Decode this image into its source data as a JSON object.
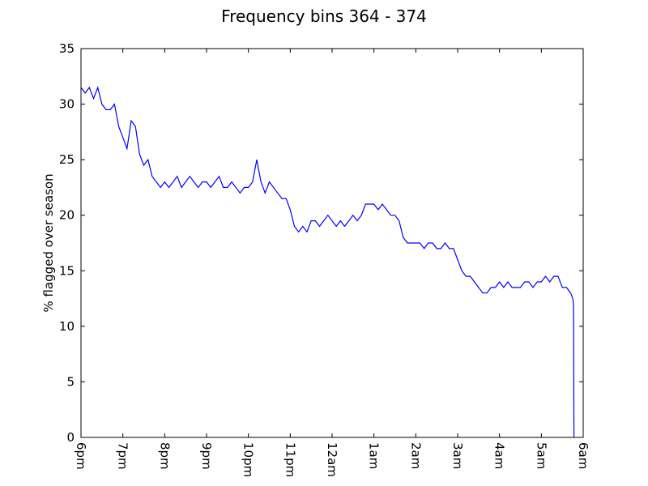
{
  "chart_data": {
    "type": "line",
    "title": "Frequency bins 364 - 374",
    "xlabel": "",
    "ylabel": "% flagged over season",
    "ylim": [
      0,
      35
    ],
    "xlim": [
      0,
      12
    ],
    "x_ticks": [
      {
        "value": 0,
        "label": "6pm"
      },
      {
        "value": 1,
        "label": "7pm"
      },
      {
        "value": 2,
        "label": "8pm"
      },
      {
        "value": 3,
        "label": "9pm"
      },
      {
        "value": 4,
        "label": "10pm"
      },
      {
        "value": 5,
        "label": "11pm"
      },
      {
        "value": 6,
        "label": "12am"
      },
      {
        "value": 7,
        "label": "1am"
      },
      {
        "value": 8,
        "label": "2am"
      },
      {
        "value": 9,
        "label": "3am"
      },
      {
        "value": 10,
        "label": "4am"
      },
      {
        "value": 11,
        "label": "5am"
      },
      {
        "value": 12,
        "label": "6am"
      }
    ],
    "y_ticks": [
      0,
      5,
      10,
      15,
      20,
      25,
      30,
      35
    ],
    "grid": false,
    "series": [
      {
        "color": "#0000ff",
        "x": [
          0.0,
          0.1,
          0.2,
          0.3,
          0.4,
          0.5,
          0.6,
          0.7,
          0.8,
          0.9,
          1.0,
          1.1,
          1.2,
          1.3,
          1.4,
          1.5,
          1.6,
          1.7,
          1.8,
          1.9,
          2.0,
          2.1,
          2.2,
          2.3,
          2.4,
          2.5,
          2.6,
          2.7,
          2.8,
          2.9,
          3.0,
          3.1,
          3.2,
          3.3,
          3.4,
          3.5,
          3.6,
          3.7,
          3.8,
          3.9,
          4.0,
          4.1,
          4.2,
          4.3,
          4.4,
          4.5,
          4.6,
          4.7,
          4.8,
          4.9,
          5.0,
          5.1,
          5.2,
          5.3,
          5.4,
          5.5,
          5.6,
          5.7,
          5.8,
          5.9,
          6.0,
          6.1,
          6.2,
          6.3,
          6.4,
          6.5,
          6.6,
          6.7,
          6.8,
          6.9,
          7.0,
          7.1,
          7.2,
          7.3,
          7.4,
          7.5,
          7.6,
          7.7,
          7.8,
          7.9,
          8.0,
          8.1,
          8.2,
          8.3,
          8.4,
          8.5,
          8.6,
          8.7,
          8.8,
          8.9,
          9.0,
          9.1,
          9.2,
          9.3,
          9.4,
          9.5,
          9.6,
          9.7,
          9.8,
          9.9,
          10.0,
          10.1,
          10.2,
          10.3,
          10.4,
          10.5,
          10.6,
          10.7,
          10.8,
          10.9,
          11.0,
          11.1,
          11.2,
          11.3,
          11.4,
          11.5,
          11.6,
          11.7,
          11.75,
          11.77,
          11.78
        ],
        "y": [
          31.5,
          31.0,
          31.5,
          30.5,
          31.5,
          30.0,
          29.5,
          29.5,
          30.0,
          28.0,
          27.0,
          26.0,
          28.5,
          28.0,
          25.5,
          24.5,
          25.0,
          23.5,
          23.0,
          22.5,
          23.0,
          22.5,
          23.0,
          23.5,
          22.5,
          23.0,
          23.5,
          23.0,
          22.5,
          23.0,
          23.0,
          22.5,
          23.0,
          23.5,
          22.5,
          22.5,
          23.0,
          22.5,
          22.0,
          22.5,
          22.5,
          23.0,
          25.0,
          23.0,
          22.0,
          23.0,
          22.5,
          22.0,
          21.5,
          21.5,
          20.5,
          19.0,
          18.5,
          19.0,
          18.5,
          19.5,
          19.5,
          19.0,
          19.5,
          20.0,
          19.5,
          19.0,
          19.5,
          19.0,
          19.5,
          20.0,
          19.5,
          20.0,
          21.0,
          21.0,
          21.0,
          20.5,
          21.0,
          20.5,
          20.0,
          20.0,
          19.5,
          18.0,
          17.5,
          17.5,
          17.5,
          17.5,
          17.0,
          17.5,
          17.5,
          17.0,
          17.0,
          17.5,
          17.0,
          17.0,
          16.0,
          15.0,
          14.5,
          14.5,
          14.0,
          13.5,
          13.0,
          13.0,
          13.5,
          13.5,
          14.0,
          13.5,
          14.0,
          13.5,
          13.5,
          13.5,
          14.0,
          14.0,
          13.5,
          14.0,
          14.0,
          14.5,
          14.0,
          14.5,
          14.5,
          13.5,
          13.5,
          13.0,
          12.5,
          12.0,
          0.0
        ]
      }
    ]
  }
}
